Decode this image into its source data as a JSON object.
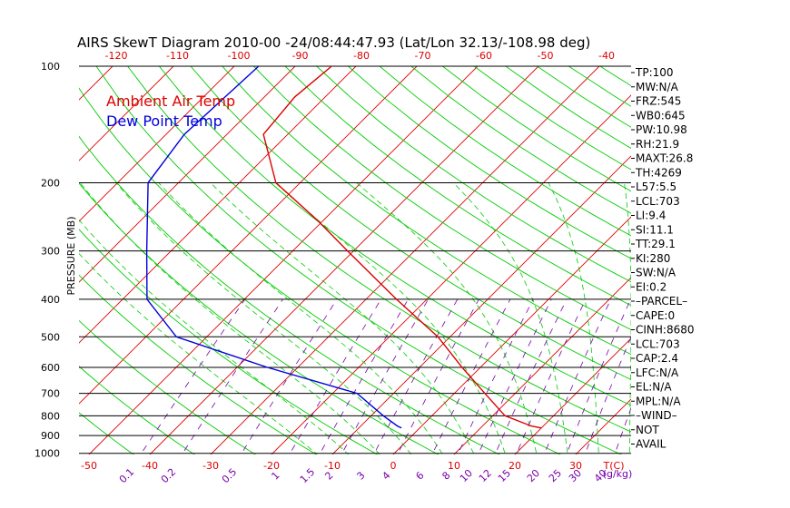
{
  "colors": {
    "ambient": "#dd0000",
    "dewpoint": "#0000dd",
    "isotherm": "#dd0000",
    "dry_adiabat": "#00cc00",
    "moist_adiabat": "#00cc00",
    "mixing_ratio": "#7700aa",
    "isobar": "#000000"
  },
  "chart_data": {
    "type": "line",
    "title": "AIRS SkewT Diagram 2010-00 -24/08:44:47.93 (Lat/Lon 32.13/-108.98 deg)",
    "ylabel": "PRESSURE (MB)",
    "y_scale": "log",
    "ylim": [
      1100,
      100
    ],
    "pressure_ticks": [
      "100",
      "200",
      "300",
      "400",
      "500",
      "600",
      "700",
      "800",
      "900",
      "1000"
    ],
    "pressure_values": [
      100,
      200,
      300,
      400,
      500,
      600,
      700,
      800,
      900,
      1000
    ],
    "top_temp_ticks": [
      "-120",
      "-110",
      "-100",
      "-90",
      "-80",
      "-70",
      "-60",
      "-50",
      "-40"
    ],
    "bottom_temp_ticks": [
      "-50",
      "-40",
      "-30",
      "-20",
      "-10",
      "0",
      "10",
      "20",
      "30"
    ],
    "bottom_temp_unit": "T(C)",
    "mixing_ratio_ticks": [
      "0.1",
      "0.2",
      "0.5",
      "1",
      "1.5",
      "2",
      "3",
      "4",
      "6",
      "8",
      "10",
      "12",
      "15",
      "20",
      "25",
      "30",
      "40"
    ],
    "mixing_ratio_unit": "(g/kg)",
    "legend": [
      {
        "label": "Ambient Air Temp",
        "color": "#dd0000"
      },
      {
        "label": "Dew Point Temp",
        "color": "#0000dd"
      }
    ],
    "series": [
      {
        "name": "Ambient Air Temp",
        "points": [
          {
            "p": 100,
            "t": -74
          },
          {
            "p": 120,
            "t": -75
          },
          {
            "p": 150,
            "t": -74
          },
          {
            "p": 200,
            "t": -64
          },
          {
            "p": 250,
            "t": -51
          },
          {
            "p": 300,
            "t": -41
          },
          {
            "p": 400,
            "t": -25
          },
          {
            "p": 500,
            "t": -12
          },
          {
            "p": 600,
            "t": -3
          },
          {
            "p": 700,
            "t": 5
          },
          {
            "p": 800,
            "t": 12
          },
          {
            "p": 850,
            "t": 18
          },
          {
            "p": 860,
            "t": 20
          }
        ]
      },
      {
        "name": "Dew Point Temp",
        "points": [
          {
            "p": 100,
            "t": -86
          },
          {
            "p": 150,
            "t": -87
          },
          {
            "p": 200,
            "t": -85
          },
          {
            "p": 300,
            "t": -74
          },
          {
            "p": 400,
            "t": -66
          },
          {
            "p": 500,
            "t": -55
          },
          {
            "p": 600,
            "t": -35
          },
          {
            "p": 700,
            "t": -16
          },
          {
            "p": 800,
            "t": -8
          },
          {
            "p": 850,
            "t": -4
          },
          {
            "p": 860,
            "t": -3
          }
        ]
      }
    ]
  },
  "indices": [
    "TP:100",
    "MW:N/A",
    "FRZ:545",
    "WB0:645",
    "PW:10.98",
    "RH:21.9",
    "MAXT:26.8",
    "TH:4269",
    "L57:5.5",
    "LCL:703",
    "LI:9.4",
    "SI:11.1",
    "TT:29.1",
    "KI:280",
    "SW:N/A",
    "EI:0.2",
    "–PARCEL–",
    "CAPE:0",
    "CINH:8680",
    "LCL:703",
    "CAP:2.4",
    "LFC:N/A",
    "EL:N/A",
    "MPL:N/A",
    "–WIND–",
    "NOT",
    "AVAIL"
  ]
}
